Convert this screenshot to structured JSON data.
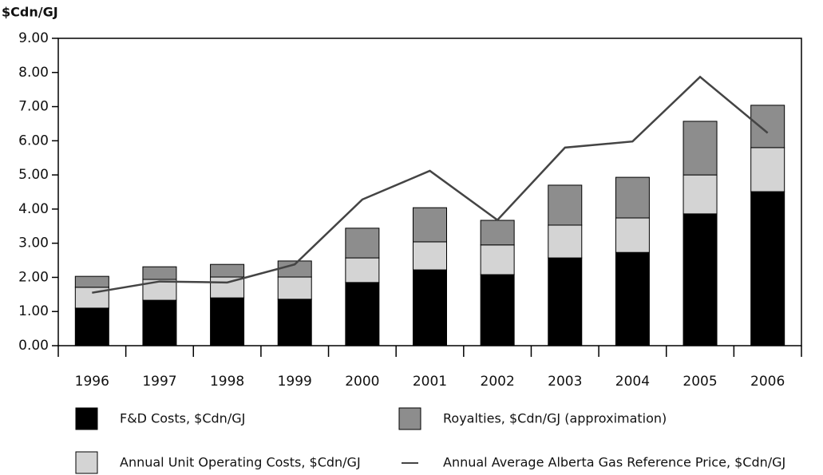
{
  "chart_data": {
    "type": "stacked_bar_line",
    "y_axis_title": "$Cdn/GJ",
    "categories": [
      "1996",
      "1997",
      "1998",
      "1999",
      "2000",
      "2001",
      "2002",
      "2003",
      "2004",
      "2005",
      "2006"
    ],
    "series": [
      {
        "name": "F&D Costs, $Cdn/GJ",
        "color": "#000000",
        "kind": "bar",
        "values": [
          1.1,
          1.33,
          1.4,
          1.36,
          1.85,
          2.22,
          2.08,
          2.57,
          2.73,
          3.86,
          4.51
        ]
      },
      {
        "name": "Annual Unit Operating Costs, $Cdn/GJ",
        "color": "#d4d4d4",
        "kind": "bar",
        "values": [
          0.61,
          0.61,
          0.61,
          0.65,
          0.72,
          0.82,
          0.87,
          0.96,
          1.01,
          1.14,
          1.29
        ]
      },
      {
        "name": "Royalties, $Cdn/GJ (approximation)",
        "color": "#8d8d8d",
        "kind": "bar",
        "values": [
          0.32,
          0.37,
          0.37,
          0.47,
          0.87,
          1.0,
          0.72,
          1.17,
          1.19,
          1.57,
          1.24
        ]
      },
      {
        "name": "Annual Average Alberta Gas Reference Price,  $Cdn/GJ",
        "color": "#444444",
        "kind": "line",
        "values": [
          1.55,
          1.88,
          1.85,
          2.38,
          4.28,
          5.12,
          3.68,
          5.8,
          5.98,
          7.87,
          6.23
        ]
      }
    ],
    "ylim": [
      0,
      9
    ],
    "yticks": [
      {
        "value": 0,
        "label": "0.00"
      },
      {
        "value": 1,
        "label": "1.00"
      },
      {
        "value": 2,
        "label": "2.00"
      },
      {
        "value": 3,
        "label": "3.00"
      },
      {
        "value": 4,
        "label": "4.00"
      },
      {
        "value": 5,
        "label": "5.00"
      },
      {
        "value": 6,
        "label": "6.00"
      },
      {
        "value": 7,
        "label": "7.00"
      },
      {
        "value": 8,
        "label": "8.00"
      },
      {
        "value": 9,
        "label": "9.00"
      }
    ]
  }
}
